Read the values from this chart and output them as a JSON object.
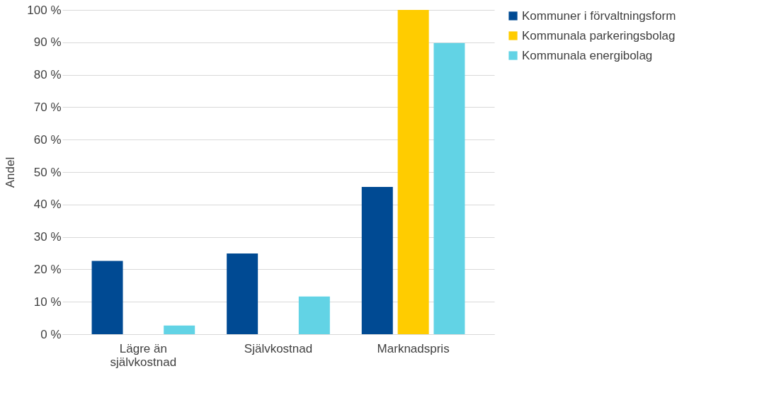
{
  "chart_data": {
    "type": "bar",
    "ylabel": "Andel",
    "categories": [
      "Lägre än självkostnad",
      "Självkostnad",
      "Marknadspris"
    ],
    "series": [
      {
        "name": "Kommuner i förvaltningsform",
        "color": "#004a93",
        "values": [
          22.6,
          24.9,
          45.4
        ]
      },
      {
        "name": "Kommunala parkeringsbolag",
        "color": "#ffcc00",
        "values": [
          0,
          0,
          100
        ]
      },
      {
        "name": "Kommunala energibolag",
        "color": "#62d3e5",
        "values": [
          2.7,
          11.6,
          89.8
        ]
      }
    ],
    "ylim": [
      0,
      100
    ],
    "yticks": [
      {
        "value": 0,
        "label": "0 %"
      },
      {
        "value": 10,
        "label": "10 %"
      },
      {
        "value": 20,
        "label": "20 %"
      },
      {
        "value": 30,
        "label": "30 %"
      },
      {
        "value": 40,
        "label": "40 %"
      },
      {
        "value": 50,
        "label": "50 %"
      },
      {
        "value": 60,
        "label": "60 %"
      },
      {
        "value": 70,
        "label": "70 %"
      },
      {
        "value": 80,
        "label": "80 %"
      },
      {
        "value": 90,
        "label": "90 %"
      },
      {
        "value": 100,
        "label": "100 %"
      }
    ],
    "grid": "y",
    "legend": "right"
  }
}
